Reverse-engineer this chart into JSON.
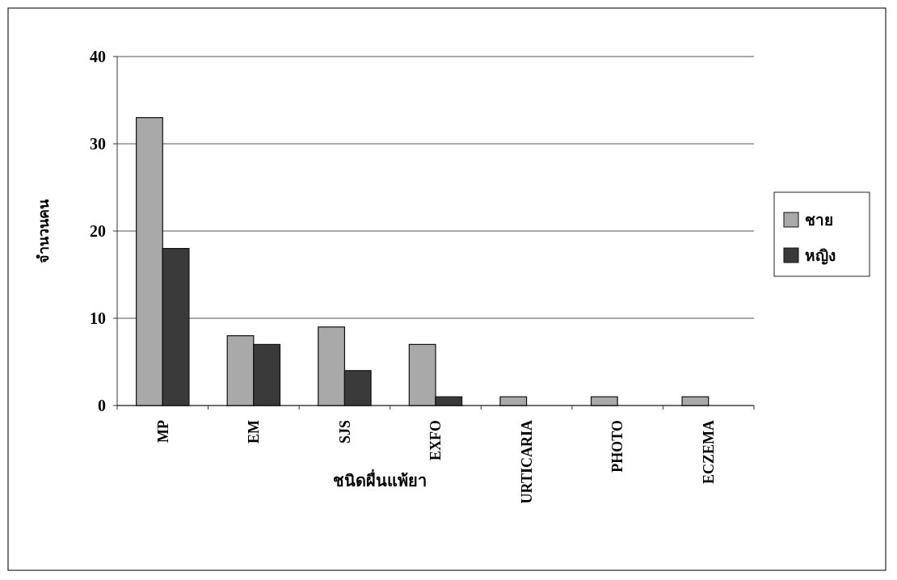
{
  "chart_data": {
    "type": "bar",
    "xlabel": "ชนิดผื่นแพ้ยา",
    "ylabel": "จำนวนคน",
    "categories": [
      "MP",
      "EM",
      "SJS",
      "EXFO",
      "URTICARIA",
      "PHOTO",
      "ECZEMA"
    ],
    "series": [
      {
        "name": "ชาย",
        "color": "#a9a9a9",
        "values": [
          33,
          8,
          9,
          7,
          1,
          1,
          1
        ]
      },
      {
        "name": "หญิง",
        "color": "#3a3a3a",
        "values": [
          18,
          7,
          4,
          1,
          0,
          0,
          0
        ]
      }
    ],
    "ylim": [
      0,
      40
    ],
    "yticks": [
      0,
      10,
      20,
      30,
      40
    ],
    "grid": "y",
    "legend": "right"
  }
}
